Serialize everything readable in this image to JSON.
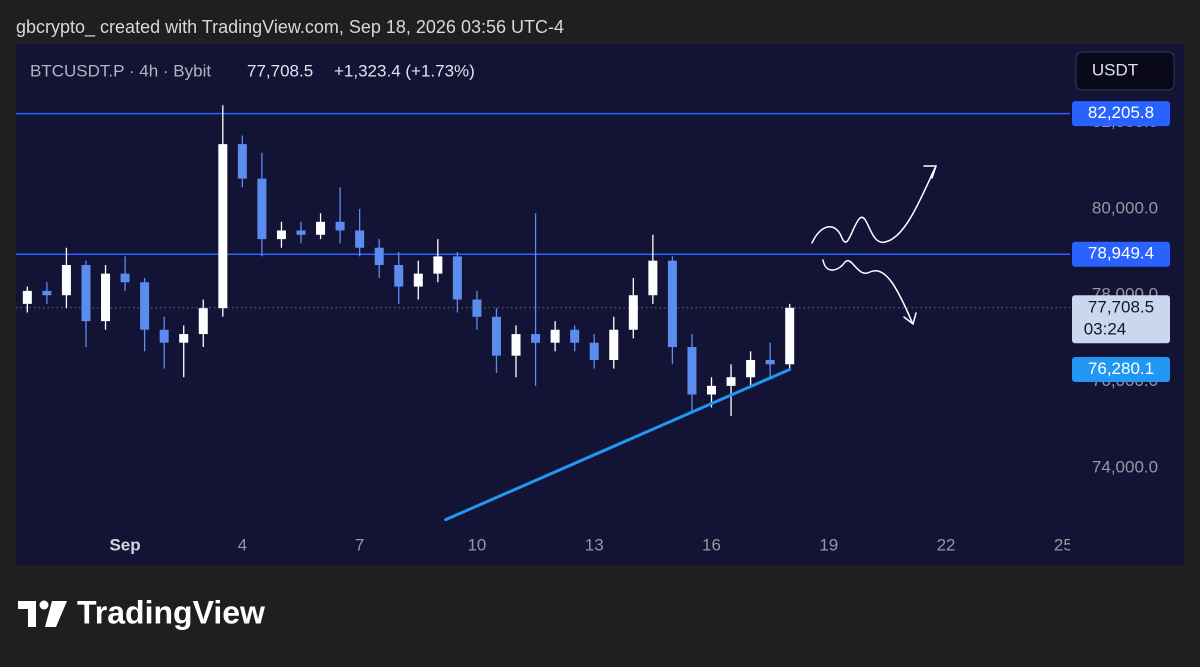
{
  "header": {
    "credit": "gbcrypto_  created with TradingView.com, Sep 18, 2026 03:56 UTC-4"
  },
  "chart_data": {
    "type": "candlestick",
    "legend": {
      "symbol": "BTCUSDT.P · 4h · Bybit",
      "price": "77,708.5",
      "change": "+1,323.4 (+1.73%)"
    },
    "currency": "USDT",
    "up_color": "#ffffff",
    "down_color": "#5b8def",
    "x": [
      -1.5,
      -1.0,
      -0.5,
      0.0,
      0.5,
      1.0,
      1.5,
      2.0,
      2.5,
      3.0,
      3.5,
      4.0,
      4.5,
      5.0,
      5.5,
      6.0,
      6.5,
      7.0,
      7.5,
      8.0,
      8.5,
      9.0,
      9.5,
      10.0,
      10.5,
      11.0,
      11.5,
      12.0,
      12.5,
      13.0,
      13.5,
      14.0,
      14.5,
      15.0,
      15.5,
      16.0,
      16.5,
      17.0,
      17.5,
      18.0
    ],
    "open": [
      77800,
      78100,
      78000,
      78700,
      77400,
      78500,
      78300,
      77200,
      76900,
      77100,
      77700,
      81500,
      80700,
      79300,
      79500,
      79400,
      79700,
      79500,
      79100,
      78700,
      78200,
      78500,
      78900,
      77900,
      77500,
      76600,
      77100,
      76900,
      77200,
      76900,
      76500,
      77200,
      78000,
      78800,
      76800,
      75700,
      75900,
      76100,
      76500,
      76400
    ],
    "high": [
      78200,
      78300,
      79100,
      78800,
      78700,
      78900,
      78400,
      77500,
      77300,
      77900,
      82400,
      81700,
      81300,
      79700,
      79700,
      79900,
      80500,
      80000,
      79300,
      79000,
      78800,
      79300,
      79000,
      78100,
      77700,
      77300,
      79900,
      77400,
      77300,
      77100,
      77500,
      78400,
      79400,
      78900,
      77100,
      76100,
      76400,
      76700,
      76900,
      77800
    ],
    "low": [
      77600,
      77800,
      77700,
      76800,
      77200,
      78100,
      76700,
      76300,
      76100,
      76800,
      77500,
      80500,
      78900,
      79100,
      79200,
      79300,
      79200,
      78900,
      78400,
      77800,
      77900,
      78300,
      77600,
      77200,
      76200,
      76100,
      75900,
      76700,
      76700,
      76300,
      76300,
      77000,
      77800,
      76400,
      75300,
      75400,
      75200,
      75900,
      76100,
      76300
    ],
    "close": [
      78100,
      78000,
      78700,
      77400,
      78500,
      78300,
      77200,
      76900,
      77100,
      77700,
      81500,
      80700,
      79300,
      79500,
      79400,
      79700,
      79500,
      79100,
      78700,
      78200,
      78500,
      78900,
      77900,
      77500,
      76600,
      77100,
      76900,
      77200,
      76900,
      76500,
      77200,
      78000,
      78800,
      76800,
      75700,
      75900,
      76100,
      76500,
      76400,
      77708.5
    ],
    "xlim": [
      -1.79,
      25.17
    ],
    "xticks": [
      {
        "value": 1,
        "label": "Sep"
      },
      4,
      7,
      10,
      13,
      16,
      19,
      22,
      25
    ],
    "ylim": [
      71750,
      83820
    ],
    "yticks": [
      {
        "value": 74000,
        "label": "74,000.0"
      },
      {
        "value": 76000,
        "label": "76,000.0"
      },
      {
        "value": 78000,
        "label": "78,000.0"
      },
      {
        "value": 80000,
        "label": "80,000.0"
      },
      {
        "value": 82000,
        "label": "82,000.0"
      }
    ],
    "levels": [
      {
        "value": 82205.8,
        "label": "82,205.8",
        "color": "#2962ff"
      },
      {
        "value": 78949.4,
        "label": "78,949.4",
        "color": "#2962ff"
      }
    ],
    "last_price": {
      "value": 77708.5,
      "label": "77,708.5",
      "countdown": "03:24"
    },
    "trendline": {
      "x": [
        9.2,
        18.0
      ],
      "y": [
        72800,
        76280.1
      ],
      "label": "76,280.1",
      "color": "#2196f3"
    }
  },
  "footer": {
    "brand": "TradingView"
  }
}
